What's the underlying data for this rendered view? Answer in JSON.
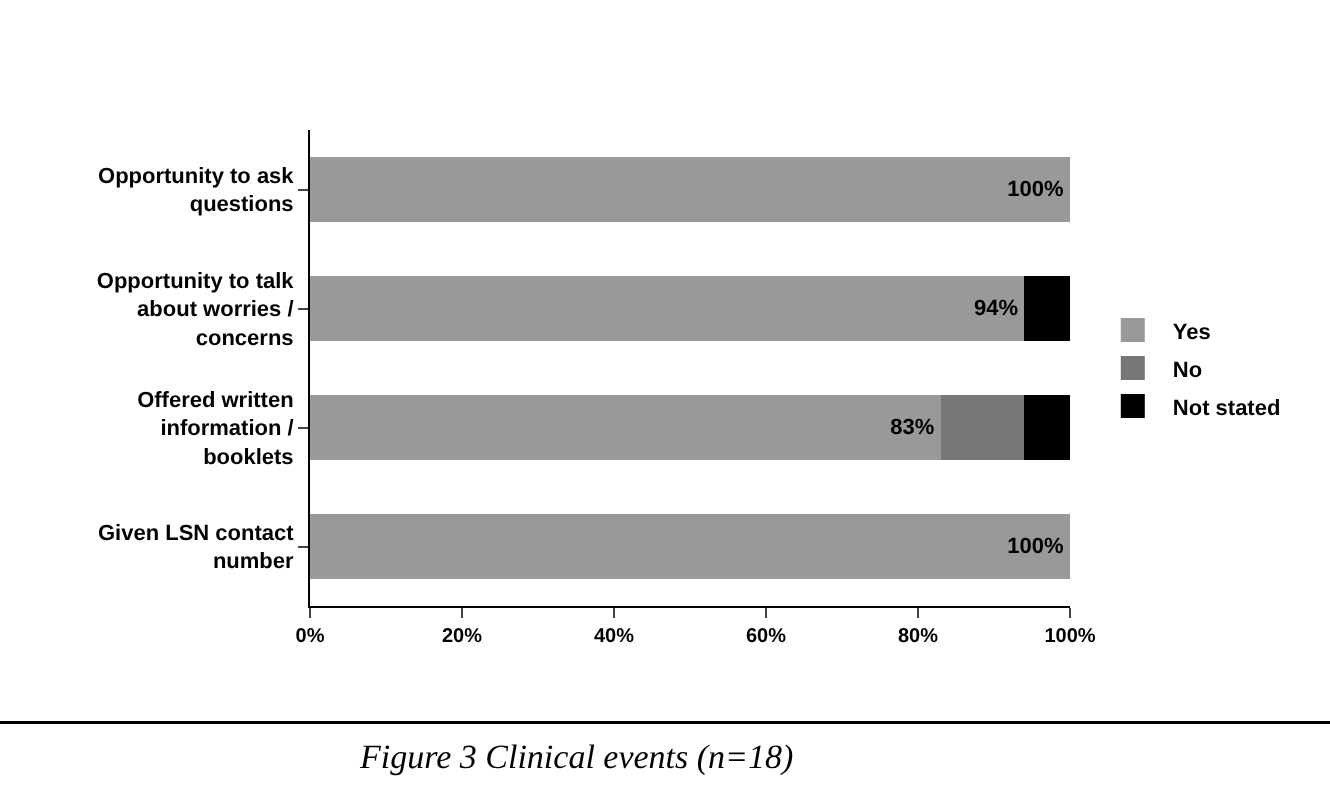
{
  "chart_data": {
    "type": "bar",
    "orientation": "horizontal",
    "stacked": true,
    "categories": [
      "Opportunity to ask questions",
      "Opportunity to talk about worries / concerns",
      "Offered written information / booklets",
      "Given LSN contact number"
    ],
    "series": [
      {
        "name": "Yes",
        "color": "#999999",
        "values": [
          100,
          94,
          83,
          100
        ],
        "value_labels": [
          "100%",
          "94%",
          "83%",
          "100%"
        ]
      },
      {
        "name": "No",
        "color": "#777777",
        "values": [
          0,
          0,
          11,
          0
        ]
      },
      {
        "name": "Not stated",
        "color": "#000000",
        "values": [
          0,
          6,
          6,
          0
        ]
      }
    ],
    "xlim": [
      0,
      100
    ],
    "xticks": [
      {
        "value": 0,
        "label": "0%"
      },
      {
        "value": 20,
        "label": "20%"
      },
      {
        "value": 40,
        "label": "40%"
      },
      {
        "value": 60,
        "label": "60%"
      },
      {
        "value": 80,
        "label": "80%"
      },
      {
        "value": 100,
        "label": "100%"
      }
    ],
    "grid": false,
    "legend": "right",
    "annotations": [
      "Figure 3 Clinical events (n=18)"
    ]
  }
}
